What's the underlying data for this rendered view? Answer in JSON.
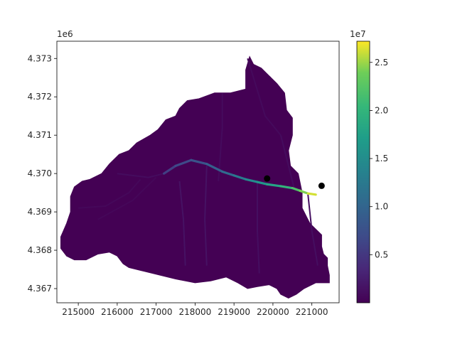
{
  "chart_data": {
    "type": "heatmap",
    "title": "",
    "xlabel": "",
    "ylabel": "",
    "grid": false,
    "x_offset_label": "",
    "y_offset_label": "1e6",
    "xlim": [
      214450,
      221700
    ],
    "ylim": [
      4.36663,
      4.37345
    ],
    "x_ticks": [
      {
        "value": 215000,
        "label": "215000"
      },
      {
        "value": 216000,
        "label": "216000"
      },
      {
        "value": 217000,
        "label": "217000"
      },
      {
        "value": 218000,
        "label": "218000"
      },
      {
        "value": 219000,
        "label": "219000"
      },
      {
        "value": 220000,
        "label": "220000"
      },
      {
        "value": 221000,
        "label": "221000"
      }
    ],
    "y_ticks": [
      {
        "value": 4.367,
        "label": "4.367"
      },
      {
        "value": 4.368,
        "label": "4.368"
      },
      {
        "value": 4.369,
        "label": "4.369"
      },
      {
        "value": 4.37,
        "label": "4.370"
      },
      {
        "value": 4.371,
        "label": "4.371"
      },
      {
        "value": 4.372,
        "label": "4.372"
      },
      {
        "value": 4.373,
        "label": "4.373"
      }
    ],
    "basin_boundary": [
      [
        219400,
        4.37305
      ],
      [
        219500,
        4.37285
      ],
      [
        219700,
        4.37275
      ],
      [
        219900,
        4.37255
      ],
      [
        220100,
        4.37235
      ],
      [
        220300,
        4.3721
      ],
      [
        220350,
        4.37165
      ],
      [
        220500,
        4.37145
      ],
      [
        220500,
        4.371
      ],
      [
        220400,
        4.3706
      ],
      [
        220450,
        4.3702
      ],
      [
        220650,
        4.37
      ],
      [
        220750,
        4.3695
      ],
      [
        220750,
        4.3691
      ],
      [
        220950,
        4.3687
      ],
      [
        221250,
        4.3684
      ],
      [
        221250,
        4.3681
      ],
      [
        221300,
        4.3679
      ],
      [
        221400,
        4.3678
      ],
      [
        221400,
        4.3676
      ],
      [
        221450,
        4.36735
      ],
      [
        221450,
        4.36715
      ],
      [
        221100,
        4.36715
      ],
      [
        220800,
        4.367
      ],
      [
        220600,
        4.36685
      ],
      [
        220400,
        4.36675
      ],
      [
        220200,
        4.36685
      ],
      [
        220100,
        4.367
      ],
      [
        219900,
        4.3671
      ],
      [
        219600,
        4.36705
      ],
      [
        219350,
        4.367
      ],
      [
        219100,
        4.36715
      ],
      [
        218800,
        4.3673
      ],
      [
        218400,
        4.3672
      ],
      [
        218000,
        4.36715
      ],
      [
        217500,
        4.36725
      ],
      [
        217100,
        4.36735
      ],
      [
        216700,
        4.36745
      ],
      [
        216300,
        4.36755
      ],
      [
        216150,
        4.36765
      ],
      [
        216000,
        4.36785
      ],
      [
        215800,
        4.36795
      ],
      [
        215500,
        4.3679
      ],
      [
        215200,
        4.36775
      ],
      [
        214900,
        4.36775
      ],
      [
        214700,
        4.36785
      ],
      [
        214550,
        4.36805
      ],
      [
        214550,
        4.36835
      ],
      [
        214700,
        4.3687
      ],
      [
        214800,
        4.369
      ],
      [
        214800,
        4.3694
      ],
      [
        214900,
        4.36965
      ],
      [
        215100,
        4.3698
      ],
      [
        215300,
        4.36985
      ],
      [
        215600,
        4.37
      ],
      [
        215800,
        4.37025
      ],
      [
        216050,
        4.3705
      ],
      [
        216300,
        4.3706
      ],
      [
        216500,
        4.3708
      ],
      [
        216850,
        4.371
      ],
      [
        217050,
        4.37115
      ],
      [
        217250,
        4.3714
      ],
      [
        217500,
        4.3715
      ],
      [
        217600,
        4.3717
      ],
      [
        217800,
        4.3719
      ],
      [
        218100,
        4.37195
      ],
      [
        218500,
        4.3721
      ],
      [
        218900,
        4.3721
      ],
      [
        219300,
        4.3722
      ],
      [
        219300,
        4.3727
      ]
    ],
    "main_channel": [
      [
        217200,
        4.37,
        5000000
      ],
      [
        217500,
        4.3702,
        6500000
      ],
      [
        217900,
        4.37035,
        7200000
      ],
      [
        218300,
        4.37025,
        8500000
      ],
      [
        218700,
        4.37005,
        10000000
      ],
      [
        219000,
        4.36995,
        11500000
      ],
      [
        219300,
        4.36985,
        13500000
      ],
      [
        219600,
        4.36978,
        15500000
      ],
      [
        219850,
        4.36972,
        17000000
      ],
      [
        220200,
        4.36967,
        19000000
      ],
      [
        220500,
        4.36962,
        21000000
      ],
      [
        220700,
        4.36955,
        23000000
      ],
      [
        220900,
        4.36948,
        25500000
      ],
      [
        221100,
        4.36945,
        27000000
      ]
    ],
    "tributaries": [
      {
        "value": 1000000,
        "points": [
          [
            216000,
            4.37
          ],
          [
            216800,
            4.3699
          ],
          [
            217200,
            4.37
          ]
        ]
      },
      {
        "value": 1500000,
        "points": [
          [
            217600,
            4.3698
          ],
          [
            217700,
            4.3688
          ],
          [
            217750,
            4.3676
          ]
        ]
      },
      {
        "value": 1500000,
        "points": [
          [
            218300,
            4.3702
          ],
          [
            218250,
            4.3688
          ],
          [
            218300,
            4.3676
          ]
        ]
      },
      {
        "value": 1200000,
        "points": [
          [
            219600,
            4.36975
          ],
          [
            219600,
            4.3685
          ],
          [
            219650,
            4.3674
          ]
        ]
      },
      {
        "value": 1000000,
        "points": [
          [
            220200,
            4.371
          ],
          [
            220450,
            4.37
          ],
          [
            220550,
            4.3696
          ]
        ]
      },
      {
        "value": 1200000,
        "points": [
          [
            220900,
            4.36945
          ],
          [
            221000,
            4.3685
          ],
          [
            221150,
            4.3676
          ]
        ]
      },
      {
        "value": 800000,
        "points": [
          [
            219350,
            4.373
          ],
          [
            219800,
            4.3715
          ],
          [
            220200,
            4.371
          ]
        ]
      },
      {
        "value": 900000,
        "points": [
          [
            218600,
            4.3698
          ],
          [
            218700,
            4.3712
          ],
          [
            218700,
            4.3721
          ]
        ]
      },
      {
        "value": 600000,
        "points": [
          [
            215000,
            4.3691
          ],
          [
            215700,
            4.36915
          ],
          [
            216300,
            4.3695
          ],
          [
            216600,
            4.36985
          ]
        ]
      },
      {
        "value": 500000,
        "points": [
          [
            215500,
            4.3688
          ],
          [
            216400,
            4.3693
          ],
          [
            217000,
            4.3699
          ]
        ]
      }
    ],
    "outlet_points": [
      {
        "x": 219850,
        "y": 4.36987
      },
      {
        "x": 221250,
        "y": 4.36968
      }
    ],
    "colorbar": {
      "offset_label": "1e7",
      "min": 0,
      "max": 2.72,
      "ticks": [
        {
          "value": 0.5,
          "label": "0.5"
        },
        {
          "value": 1.0,
          "label": "1.0"
        },
        {
          "value": 1.5,
          "label": "1.5"
        },
        {
          "value": 2.0,
          "label": "2.0"
        },
        {
          "value": 2.5,
          "label": "2.5"
        }
      ],
      "colormap": "viridis"
    }
  }
}
